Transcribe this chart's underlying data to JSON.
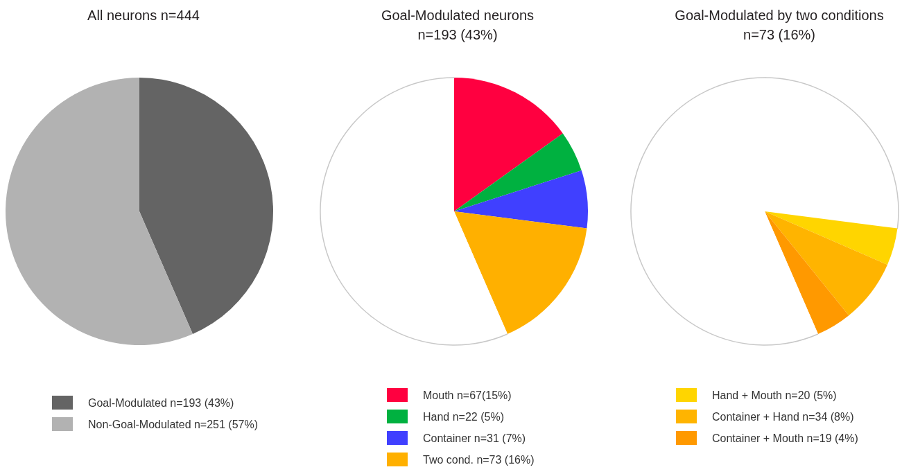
{
  "chart_data": [
    {
      "type": "pie",
      "title": "All neurons n=444",
      "categories": [
        "Goal-Modulated n=193 (43%)",
        "Non-Goal-Modulated n=251 (57%)"
      ],
      "values": [
        193,
        251
      ],
      "colors": [
        "#646464",
        "#b2b2b2"
      ],
      "legend": "bottom"
    },
    {
      "type": "pie",
      "title": "Goal-Modulated neurons",
      "subtitle": "n=193 (43%)",
      "categories": [
        "Mouth n=67(15%)",
        "Hand n=22 (5%)",
        "Container n=31 (7%)",
        "Two cond. n=73 (16%)",
        null
      ],
      "values": [
        67,
        22,
        31,
        73,
        251
      ],
      "colors": [
        "#ff0040",
        "#00b140",
        "#4040ff",
        "#ffb000",
        "#ffffff"
      ],
      "legend": "bottom"
    },
    {
      "type": "pie",
      "title": "Goal-Modulated by two conditions",
      "subtitle": "n=73 (16%)",
      "categories": [
        null,
        "Hand + Mouth n=20 (5%)",
        "Container + Hand n=34 (8%)",
        "Container + Mouth n=19 (4%)",
        null
      ],
      "values": [
        120,
        20,
        34,
        19,
        251
      ],
      "colors": [
        "#ffffff",
        "#ffd500",
        "#ffb400",
        "#ff9900",
        "#ffffff"
      ],
      "legend": "bottom"
    }
  ]
}
